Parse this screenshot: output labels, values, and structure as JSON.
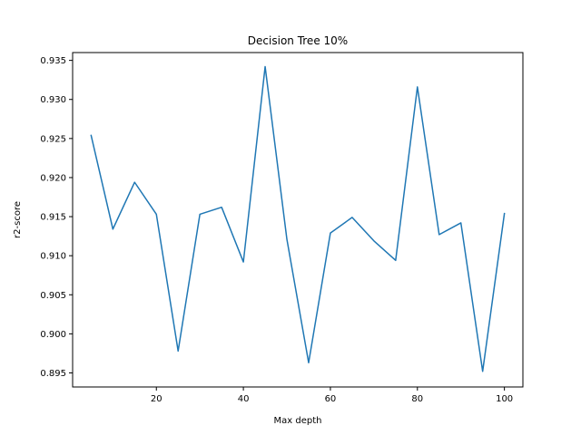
{
  "chart_data": {
    "type": "line",
    "title": "Decision Tree 10%",
    "xlabel": "Max depth",
    "ylabel": "r2-score",
    "xlim": [
      0.75,
      104.25
    ],
    "ylim": [
      0.8932,
      0.936
    ],
    "xticks": [
      20,
      40,
      60,
      80,
      100
    ],
    "xtick_labels": [
      "20",
      "40",
      "60",
      "80",
      "100"
    ],
    "yticks": [
      0.895,
      0.9,
      0.905,
      0.91,
      0.915,
      0.92,
      0.925,
      0.93,
      0.935
    ],
    "ytick_labels": [
      "0.895",
      "0.900",
      "0.905",
      "0.910",
      "0.915",
      "0.920",
      "0.925",
      "0.930",
      "0.935"
    ],
    "grid": false,
    "legend": "none",
    "series": [
      {
        "color": "#1f77b4",
        "x": [
          5,
          10,
          15,
          20,
          25,
          30,
          35,
          40,
          45,
          50,
          55,
          60,
          65,
          70,
          75,
          80,
          85,
          90,
          95,
          100
        ],
        "y": [
          0.9254,
          0.9134,
          0.9194,
          0.9153,
          0.8978,
          0.9153,
          0.9162,
          0.9092,
          0.9342,
          0.9121,
          0.8963,
          0.9129,
          0.9149,
          0.9119,
          0.9094,
          0.9316,
          0.9127,
          0.9142,
          0.8952,
          0.9154
        ]
      }
    ]
  }
}
